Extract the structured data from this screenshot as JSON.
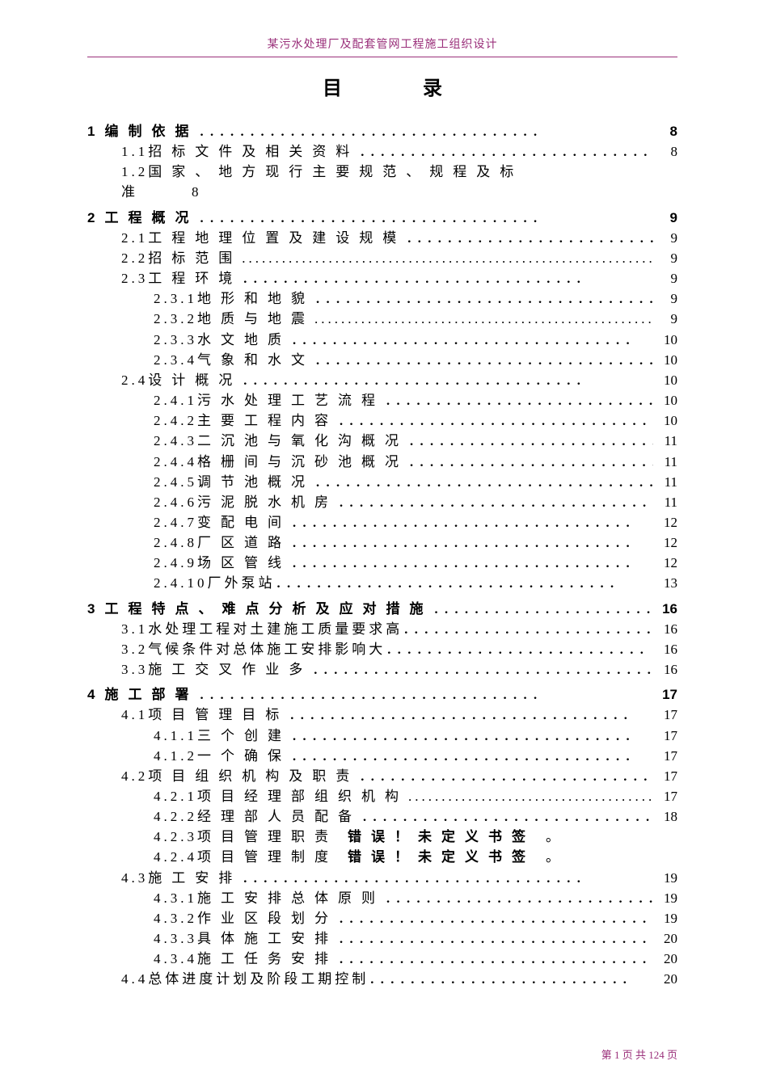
{
  "doc": {
    "header_text": "某污水处理厂及配套管网工程施工组织设计",
    "title_left": "目",
    "title_right": "录",
    "footer": "第 1 页 共 124 页"
  },
  "dots": {
    "normal": "．．．．．．．．．．．．．．．．．．．．．．．．．．．．．．．．．．",
    "thin": "..........................................................................................",
    "short": "．．．．．．．．．．．．．．．．．．．．．．．．．．"
  },
  "toc": [
    {
      "lvl": 1,
      "num": "1",
      "txt": "编制依据",
      "pg": "8"
    },
    {
      "lvl": 2,
      "num": "1.1",
      "txt": "招标文件及相关资料",
      "pg": "8",
      "dots": "normal"
    },
    {
      "lvl": 0,
      "wrap": true,
      "num": "1.2",
      "txt": "国家、地方现行主要规范、规程及标",
      "cont": "准　　8"
    },
    {
      "lvl": 1,
      "num": "2",
      "txt": "工程概况",
      "pg": "9"
    },
    {
      "lvl": 2,
      "num": "2.1",
      "txt": "工程地理位置及建设规模",
      "pg": "9",
      "dots": "normal"
    },
    {
      "lvl": 2,
      "num": "2.2",
      "txt": "招标范围",
      "pg": "9",
      "dots": "thin"
    },
    {
      "lvl": 2,
      "num": "2.3",
      "txt": "工程环境",
      "pg": "9",
      "dots": "normal"
    },
    {
      "lvl": 3,
      "num": "2.3.1",
      "txt": "地形和地貌",
      "pg": "9",
      "dots": "normal"
    },
    {
      "lvl": 3,
      "num": "2.3.2",
      "txt": "地质与地震",
      "pg": "9",
      "dots": "thin"
    },
    {
      "lvl": 3,
      "num": "2.3.3",
      "txt": "水文地质",
      "pg": "10",
      "dots": "normal"
    },
    {
      "lvl": 3,
      "num": "2.3.4",
      "txt": "气象和水文",
      "pg": "10",
      "dots": "normal"
    },
    {
      "lvl": 2,
      "num": "2.4",
      "txt": "设计概况",
      "pg": "10",
      "dots": "normal"
    },
    {
      "lvl": 3,
      "num": "2.4.1",
      "txt": "污水处理工艺流程",
      "pg": "10",
      "dots": "normal"
    },
    {
      "lvl": 3,
      "num": "2.4.2",
      "txt": "主要工程内容",
      "pg": "10",
      "dots": "normal"
    },
    {
      "lvl": 3,
      "num": "2.4.3",
      "txt": "二沉池与氧化沟概况",
      "pg": "11",
      "dots": "normal"
    },
    {
      "lvl": 3,
      "num": "2.4.4",
      "txt": "格栅间与沉砂池概况",
      "pg": "11",
      "dots": "normal"
    },
    {
      "lvl": 3,
      "num": "2.4.5",
      "txt": "调节池概况",
      "pg": "11",
      "dots": "normal"
    },
    {
      "lvl": 3,
      "num": "2.4.6",
      "txt": "污泥脱水机房",
      "pg": "11",
      "dots": "normal"
    },
    {
      "lvl": 3,
      "num": "2.4.7",
      "txt": "变配电间",
      "pg": "12",
      "dots": "normal"
    },
    {
      "lvl": 3,
      "num": "2.4.8",
      "txt": "厂区道路",
      "pg": "12",
      "dots": "normal"
    },
    {
      "lvl": 3,
      "num": "2.4.9",
      "txt": "场区管线",
      "pg": "12",
      "dots": "normal"
    },
    {
      "lvl": 3,
      "num": "2.4.10",
      "txt": "厂外泵站",
      "pg": "13",
      "dots": "normal",
      "tight": true
    },
    {
      "lvl": 1,
      "num": "3",
      "txt": "工程特点、难点分析及应对措施",
      "pg": "16",
      "tight": false,
      "dots": "short"
    },
    {
      "lvl": 2,
      "num": "3.1",
      "txt": "水处理工程对土建施工质量要求高",
      "pg": "16",
      "tight": true
    },
    {
      "lvl": 2,
      "num": "3.2",
      "txt": "气候条件对总体施工安排影响大",
      "pg": "16",
      "tight": true,
      "dots": "short"
    },
    {
      "lvl": 2,
      "num": "3.3",
      "txt": "施工交叉作业多",
      "pg": "16",
      "dots": "normal"
    },
    {
      "lvl": 1,
      "num": "4",
      "txt": "施工部署",
      "pg": "17"
    },
    {
      "lvl": 2,
      "num": "4.1",
      "txt": "项目管理目标",
      "pg": "17",
      "dots": "normal"
    },
    {
      "lvl": 3,
      "num": "4.1.1",
      "txt": "三个创建",
      "pg": "17",
      "dots": "normal"
    },
    {
      "lvl": 3,
      "num": "4.1.2",
      "txt": "一个确保",
      "pg": "17",
      "dots": "normal"
    },
    {
      "lvl": 2,
      "num": "4.2",
      "txt": "项目组织机构及职责",
      "pg": "17",
      "dots": "normal"
    },
    {
      "lvl": 3,
      "num": "4.2.1",
      "txt": "项目经理部组织机构",
      "pg": "17",
      "dots": "thin"
    },
    {
      "lvl": 3,
      "num": "4.2.2",
      "txt": "经理部人员配备",
      "pg": "18",
      "dots": "normal"
    },
    {
      "lvl": 3,
      "num": "4.2.3",
      "txt": "项目管理职责",
      "err": "错误！未定义书签",
      "pg": "。"
    },
    {
      "lvl": 3,
      "num": "4.2.4",
      "txt": "项目管理制度",
      "err": "错误！未定义书签",
      "pg": "。"
    },
    {
      "lvl": 2,
      "num": "4.3",
      "txt": "施工安排",
      "pg": "19",
      "dots": "normal"
    },
    {
      "lvl": 3,
      "num": "4.3.1",
      "txt": "施工安排总体原则",
      "pg": "19",
      "dots": "normal"
    },
    {
      "lvl": 3,
      "num": "4.3.2",
      "txt": "作业区段划分",
      "pg": "19",
      "dots": "normal"
    },
    {
      "lvl": 3,
      "num": "4.3.3",
      "txt": "具体施工安排",
      "pg": "20",
      "dots": "normal"
    },
    {
      "lvl": 3,
      "num": "4.3.4",
      "txt": "施工任务安排",
      "pg": "20",
      "dots": "normal"
    },
    {
      "lvl": 2,
      "num": "4.4",
      "txt": "总体进度计划及阶段工期控制",
      "pg": "20",
      "dots": "short",
      "tight": true
    }
  ]
}
